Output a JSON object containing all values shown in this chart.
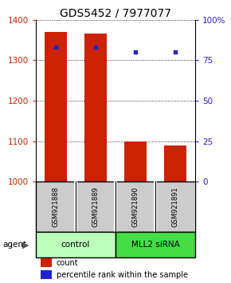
{
  "title": "GDS5452 / 7977077",
  "samples": [
    "GSM921888",
    "GSM921889",
    "GSM921890",
    "GSM921891"
  ],
  "counts": [
    1370,
    1365,
    1100,
    1090
  ],
  "percentiles": [
    83,
    83,
    80,
    80
  ],
  "ylim_left": [
    1000,
    1400
  ],
  "ylim_right": [
    0,
    100
  ],
  "yticks_left": [
    1000,
    1100,
    1200,
    1300,
    1400
  ],
  "yticks_right": [
    0,
    25,
    50,
    75,
    100
  ],
  "bar_color": "#cc2200",
  "dot_color": "#2222cc",
  "groups": [
    {
      "label": "control",
      "samples": [
        0,
        1
      ],
      "color": "#bbffbb"
    },
    {
      "label": "MLL2 siRNA",
      "samples": [
        2,
        3
      ],
      "color": "#44dd44"
    }
  ],
  "sample_box_color": "#cccccc",
  "baseline": 1000,
  "bar_width": 0.55,
  "title_fontsize": 10,
  "tick_fontsize": 7.5,
  "legend_fontsize": 7,
  "agent_label": "agent",
  "left_tick_color": "#cc2200",
  "right_tick_color": "#2222cc"
}
